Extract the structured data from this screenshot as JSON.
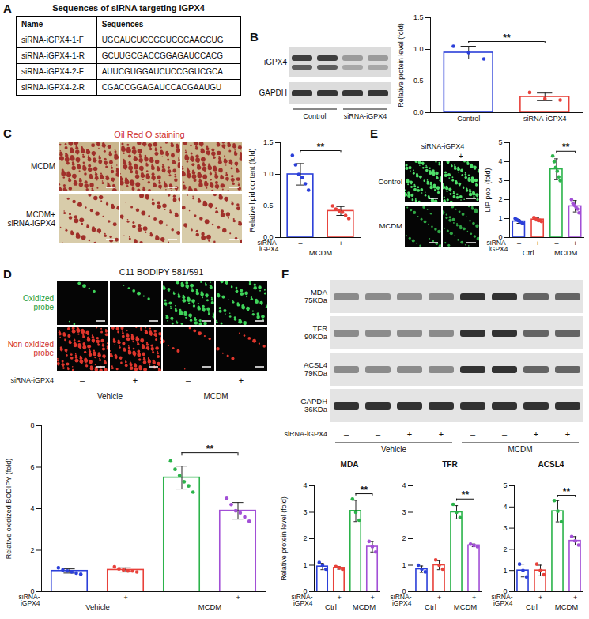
{
  "panels": [
    {
      "letter": "A",
      "table": {
        "title": "Sequences of siRNA targeting iGPX4",
        "header": [
          "Name",
          "Sequences"
        ],
        "rows": [
          [
            "siRNA-iGPX4-1-F",
            "UGGAUCUCCGGUCGCAAGCUG"
          ],
          [
            "siRNA-iGPX4-1-R",
            "GCUUGCGACCGGAGAUCCACG"
          ],
          [
            "siRNA-iGPX4-2-F",
            "AUUCGUGGAUCUCCGGUCGCA"
          ],
          [
            "siRNA-iGPX4-2-R",
            "CGACCGGAGAUCCACGAAUGU"
          ]
        ]
      }
    },
    {
      "letter": "B",
      "blot": {
        "bands": [
          {
            "name": "iGPX4"
          },
          {
            "name": "GAPDH"
          }
        ],
        "groups": [
          "Control",
          "siRNA-iGPX4"
        ]
      }
    },
    {
      "letter": "C",
      "images": {
        "title": "Oil Red O staining",
        "rows": [
          "MCDM",
          "MCDM+ siRNA-iGPX4"
        ]
      }
    },
    {
      "letter": "D",
      "images": {
        "title": "C11 BODIPY 581/591",
        "rows": [
          "Oxidized probe",
          "Non-oxidized probe"
        ],
        "treatment": "siRNA-iGPX4",
        "columns": [
          "–",
          "+",
          "–",
          "+"
        ],
        "groups": [
          "Vehicle",
          "MCDM"
        ]
      }
    },
    {
      "letter": "E",
      "images": {
        "treatment": "siRNA-iGPX4",
        "columns": [
          "–",
          "+"
        ],
        "rows": [
          "Control",
          "MCDM"
        ]
      }
    },
    {
      "letter": "F",
      "blot": {
        "bands": [
          {
            "name": "MDA",
            "size": "75KDa"
          },
          {
            "name": "TFR",
            "size": "90KDa"
          },
          {
            "name": "ACSL4",
            "size": "79KDa"
          },
          {
            "name": "GAPDH",
            "size": "36KDa"
          }
        ],
        "treatment": "siRNA-iGPX4",
        "columns": [
          "–",
          "–",
          "+",
          "+",
          "–",
          "–",
          "+",
          "+"
        ],
        "groups": [
          "Vehicle",
          "MCDM"
        ]
      }
    }
  ],
  "chart_data": [
    {
      "type": "bar",
      "y_label": "Relative protein level (fold)",
      "categories": [
        "Control",
        "siRNA-iGPX4"
      ],
      "values": [
        0.95,
        0.25
      ],
      "errors": [
        0.1,
        0.06
      ],
      "points": [
        [
          1.05,
          0.95,
          0.85
        ],
        [
          0.32,
          0.22,
          0.2
        ]
      ],
      "colors": [
        "#2b3fd9",
        "#e8413a"
      ],
      "marker": "circle",
      "ylim": [
        0,
        1.5
      ],
      "yticks": [
        {
          "value": 0,
          "label": "0.0"
        },
        0.5,
        {
          "value": 1,
          "label": "1.0"
        },
        1.5
      ],
      "significance": [
        {
          "text": "**",
          "between": [
            0,
            1
          ]
        }
      ]
    },
    {
      "type": "bar",
      "y_label": "Relative lipid content (fold)",
      "categories": [
        "–",
        "+"
      ],
      "treatment": "siRNA-iGPX4",
      "groups": [
        "MCDM"
      ],
      "values": [
        1.0,
        0.42
      ],
      "errors": [
        0.17,
        0.07
      ],
      "points": [
        [
          1.3,
          1.15,
          1.0,
          0.95,
          0.85,
          0.75
        ],
        [
          0.5,
          0.45,
          0.42,
          0.4,
          0.35,
          0.3
        ]
      ],
      "colors": [
        "#2b3fd9",
        "#e8413a"
      ],
      "marker": "circle",
      "ylim": [
        0,
        1.5
      ],
      "yticks": [
        {
          "value": 0,
          "label": "0.0"
        },
        0.5,
        {
          "value": 1,
          "label": "1.0"
        },
        1.5
      ],
      "significance": [
        {
          "text": "**",
          "between": [
            0,
            1
          ]
        }
      ]
    },
    {
      "type": "bar",
      "y_label": "Relative oxidized BODIPY (fold)",
      "categories": [
        "–",
        "+",
        "–",
        "+"
      ],
      "treatment": "siRNA-iGPX4",
      "groups": [
        "Vehicle",
        "MCDM"
      ],
      "values": [
        1.0,
        1.05,
        5.5,
        3.9
      ],
      "errors": [
        0.1,
        0.1,
        0.55,
        0.4
      ],
      "points": [
        [
          1.15,
          1.05,
          1.0,
          0.95,
          0.9,
          0.85
        ],
        [
          1.2,
          1.1,
          1.05,
          1.0,
          1.0,
          0.95
        ],
        [
          6.3,
          5.9,
          5.6,
          5.3,
          5.1,
          4.8
        ],
        [
          4.5,
          4.2,
          3.9,
          3.8,
          3.6,
          3.4
        ]
      ],
      "colors": [
        "#2b3fd9",
        "#e8413a",
        "#2bb34a",
        "#a24fd6"
      ],
      "marker": "circle",
      "ylim": [
        0,
        8
      ],
      "yticks": [
        0,
        2,
        4,
        6,
        8
      ],
      "significance": [
        {
          "text": "**",
          "between": [
            2,
            3
          ]
        }
      ]
    },
    {
      "type": "bar",
      "y_label": "LIP pool (fold)",
      "categories": [
        "–",
        "+",
        "–",
        "+"
      ],
      "treatment": "siRNA-iGPX4",
      "groups": [
        "Ctrl",
        "MCDM"
      ],
      "values": [
        0.85,
        0.95,
        3.6,
        1.65
      ],
      "errors": [
        0.1,
        0.08,
        0.55,
        0.3
      ],
      "points": [
        [
          1.0,
          0.95,
          0.9,
          0.85,
          0.8,
          0.75
        ],
        [
          1.05,
          1.0,
          0.95,
          0.9,
          0.9,
          0.85
        ],
        [
          4.3,
          4.0,
          3.7,
          3.5,
          3.2,
          3.0
        ],
        [
          2.0,
          1.8,
          1.7,
          1.6,
          1.5,
          1.3
        ]
      ],
      "colors": [
        "#2b3fd9",
        "#e8413a",
        "#2bb34a",
        "#a24fd6"
      ],
      "marker": "circle",
      "ylim": [
        0,
        5
      ],
      "yticks": [
        0,
        1,
        2,
        3,
        4,
        5
      ],
      "significance": [
        {
          "text": "**",
          "between": [
            2,
            3
          ]
        }
      ]
    },
    {
      "type": "bar",
      "title": "MDA",
      "y_label": "Relative protein level (fold)",
      "categories": [
        "–",
        "+",
        "–",
        "+"
      ],
      "treatment": "siRNA-iGPX4",
      "groups": [
        "Ctrl",
        "MCDM"
      ],
      "values": [
        0.95,
        0.9,
        3.05,
        1.7
      ],
      "errors": [
        0.12,
        0.05,
        0.4,
        0.2
      ],
      "points": [
        [
          1.1,
          1.0,
          0.85
        ],
        [
          0.95,
          0.9,
          0.85
        ],
        [
          3.5,
          3.0,
          2.7
        ],
        [
          1.9,
          1.7,
          1.5
        ]
      ],
      "colors": [
        "#2b3fd9",
        "#e8413a",
        "#2bb34a",
        "#a24fd6"
      ],
      "marker": "circle",
      "ylim": [
        0,
        4
      ],
      "yticks": [
        0,
        1,
        2,
        3,
        4
      ],
      "significance": [
        {
          "text": "**",
          "between": [
            2,
            3
          ]
        }
      ]
    },
    {
      "type": "bar",
      "title": "TFR",
      "categories": [
        "–",
        "+",
        "–",
        "+"
      ],
      "treatment": "siRNA-iGPX4",
      "groups": [
        "Ctrl",
        "MCDM"
      ],
      "values": [
        0.85,
        1.0,
        3.0,
        1.75
      ],
      "errors": [
        0.12,
        0.17,
        0.25,
        0.05
      ],
      "points": [
        [
          1.0,
          0.85,
          0.75
        ],
        [
          1.2,
          1.0,
          0.85
        ],
        [
          3.3,
          3.0,
          2.8
        ],
        [
          1.8,
          1.75,
          1.7
        ]
      ],
      "colors": [
        "#2b3fd9",
        "#e8413a",
        "#2bb34a",
        "#a24fd6"
      ],
      "marker": "circle",
      "ylim": [
        0,
        4
      ],
      "yticks": [
        0,
        1,
        2,
        3,
        4
      ],
      "significance": [
        {
          "text": "**",
          "between": [
            2,
            3
          ]
        }
      ]
    },
    {
      "type": "bar",
      "title": "ACSL4",
      "categories": [
        "–",
        "+",
        "–",
        "+"
      ],
      "treatment": "siRNA-iGPX4",
      "groups": [
        "Ctrl",
        "MCDM"
      ],
      "values": [
        1.0,
        1.0,
        3.8,
        2.4
      ],
      "errors": [
        0.3,
        0.25,
        0.5,
        0.2
      ],
      "points": [
        [
          1.3,
          1.0,
          0.7
        ],
        [
          1.3,
          1.0,
          0.8
        ],
        [
          4.3,
          3.8,
          3.3
        ],
        [
          2.6,
          2.4,
          2.2
        ]
      ],
      "colors": [
        "#2b3fd9",
        "#e8413a",
        "#2bb34a",
        "#a24fd6"
      ],
      "marker": "circle",
      "ylim": [
        0,
        5
      ],
      "yticks": [
        0,
        1,
        2,
        3,
        4,
        5
      ],
      "significance": [
        {
          "text": "**",
          "between": [
            2,
            3
          ]
        }
      ]
    }
  ]
}
